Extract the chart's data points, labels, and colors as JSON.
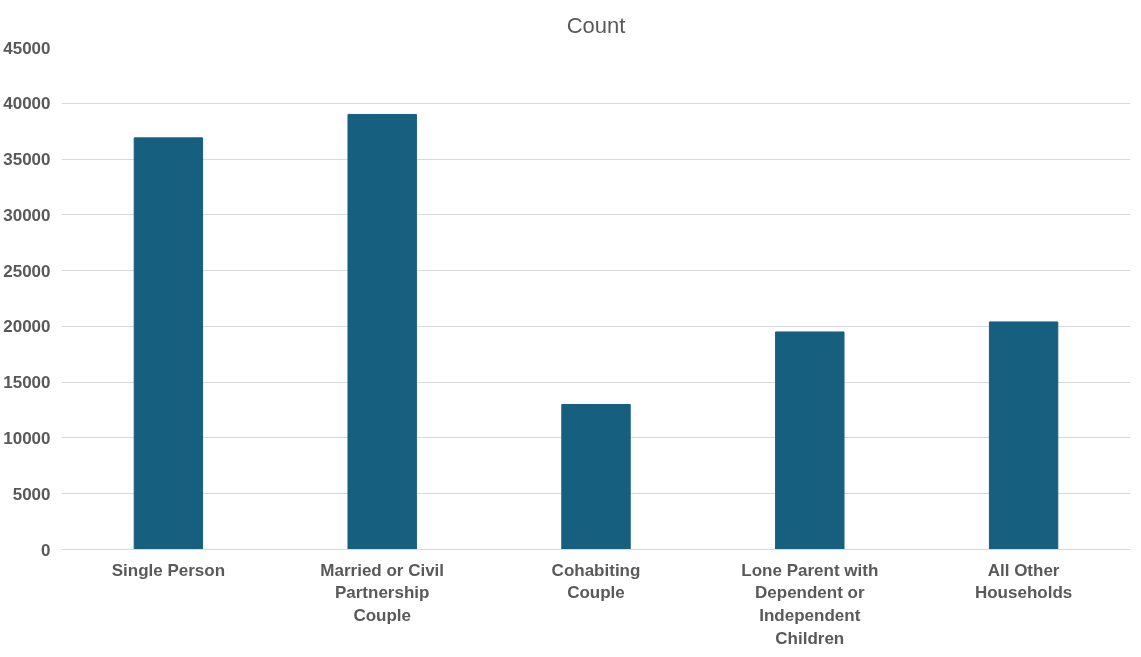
{
  "chart_data": {
    "type": "bar",
    "title": "Count",
    "categories": [
      "Single Person",
      "Married or Civil Partnership Couple",
      "Cohabiting Couple",
      "Lone Parent with Dependent or Independent Children",
      "All Other Households"
    ],
    "values": [
      36900,
      39000,
      13000,
      19500,
      20400
    ],
    "color": "#175f7f",
    "ylim": [
      0,
      45000
    ],
    "yticks": [
      0,
      5000,
      10000,
      15000,
      20000,
      25000,
      30000,
      35000,
      40000,
      45000
    ],
    "grid": "y"
  }
}
